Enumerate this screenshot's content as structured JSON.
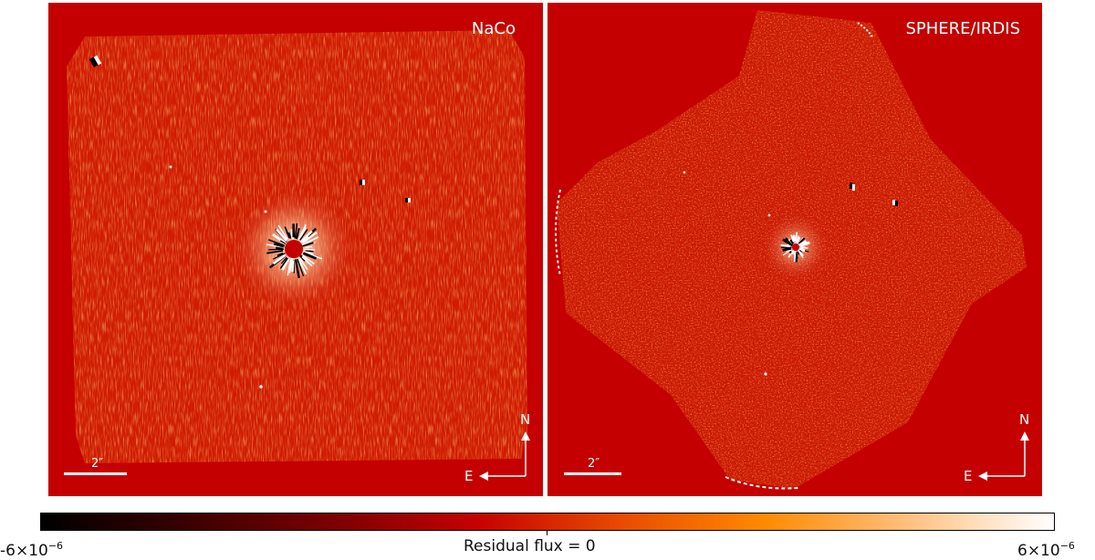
{
  "panels": [
    {
      "title": "NaCo",
      "scale_bar_label": "2″",
      "compass": {
        "north": "N",
        "east": "E"
      }
    },
    {
      "title": "SPHERE/IRDIS",
      "scale_bar_label": "2″",
      "compass": {
        "north": "N",
        "east": "E"
      }
    }
  ],
  "colorbar": {
    "min_label": "-6×10",
    "min_exponent": "−6",
    "center_label": "Residual flux = 0",
    "max_label": "6×10",
    "max_exponent": "−6",
    "colors": [
      "#000000",
      "#3a0000",
      "#7a0000",
      "#c40000",
      "#e84a00",
      "#ff8a00",
      "#ffc080",
      "#ffffff"
    ]
  },
  "colors": {
    "background": "#c40000",
    "noise": "#de3a0a",
    "annotation": "#ffffff"
  }
}
